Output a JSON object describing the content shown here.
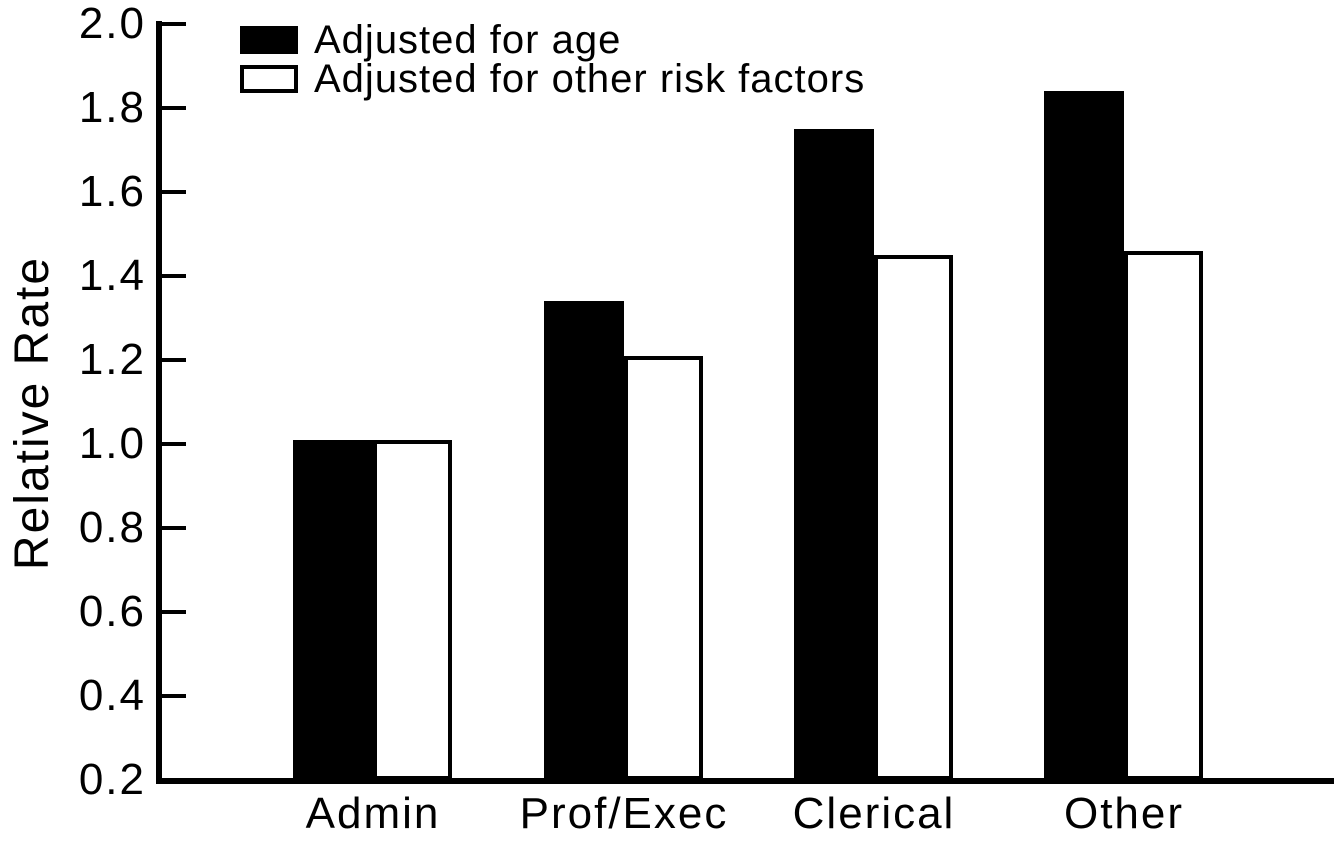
{
  "chart_data": {
    "type": "bar",
    "title": "",
    "xlabel": "",
    "ylabel": "Relative Rate",
    "categories": [
      "Admin",
      "Prof/Exec",
      "Clerical",
      "Other"
    ],
    "series": [
      {
        "name": "Adjusted for age",
        "style": "filled",
        "fill": "#000000",
        "values": [
          1.01,
          1.34,
          1.75,
          1.84
        ]
      },
      {
        "name": "Adjusted for other risk factors",
        "style": "open",
        "fill": "#ffffff",
        "values": [
          1.01,
          1.21,
          1.45,
          1.46
        ]
      }
    ],
    "ylim": [
      0.2,
      2.0
    ],
    "ytick_labels": [
      "0.2",
      "0.4",
      "0.6",
      "0.8",
      "1.0",
      "1.2",
      "1.4",
      "1.6",
      "1.8",
      "2.0"
    ],
    "grid": false,
    "legend_position": "top-left",
    "axis_color": "#000000",
    "background_color": "#ffffff"
  }
}
